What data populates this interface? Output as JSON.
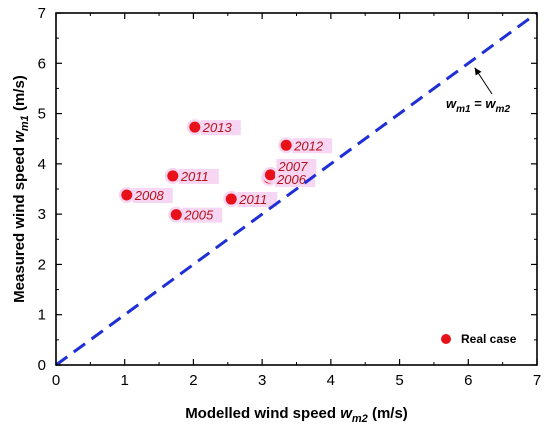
{
  "chart_data": {
    "type": "scatter",
    "x_axis": {
      "label_prefix": "Modelled wind speed ",
      "label_var": "w",
      "label_sub": "m2",
      "label_unit": " (m/s)",
      "range": [
        0,
        7
      ],
      "ticks": [
        "0",
        "1",
        "2",
        "3",
        "4",
        "5",
        "6",
        "7"
      ]
    },
    "y_axis": {
      "label_prefix": "Measured wind speed ",
      "label_var": "w",
      "label_sub": "m1",
      "label_unit": " (m/s)",
      "range": [
        0,
        7
      ],
      "ticks": [
        "0",
        "1",
        "2",
        "3",
        "4",
        "5",
        "6",
        "7"
      ]
    },
    "grid": false,
    "series": [
      {
        "name": "Real case",
        "color": "#e8111a",
        "points": [
          {
            "x": 1.03,
            "y": 3.38,
            "label": "2008"
          },
          {
            "x": 1.75,
            "y": 2.99,
            "label": "2005"
          },
          {
            "x": 1.7,
            "y": 3.76,
            "label": "2011"
          },
          {
            "x": 2.02,
            "y": 4.73,
            "label": "2013"
          },
          {
            "x": 2.55,
            "y": 3.3,
            "label": "2011"
          },
          {
            "x": 3.1,
            "y": 3.72,
            "label": "2006"
          },
          {
            "x": 3.12,
            "y": 3.78,
            "label": "2007"
          },
          {
            "x": 3.35,
            "y": 4.37,
            "label": "2012"
          }
        ]
      }
    ],
    "reference_line": {
      "points": [
        [
          0,
          0
        ],
        [
          7,
          7
        ]
      ],
      "color": "#1f2fd6",
      "style": "dashed",
      "label_lhs_var": "w",
      "label_lhs_sub": "m1",
      "label_eq": "= ",
      "label_rhs_var": "w",
      "label_rhs_sub": "m2"
    },
    "legend": {
      "position": "bottom-right",
      "entries": [
        "Real case"
      ]
    },
    "label_highlight_color": "#f7d6f3",
    "label_text_color": "#b5121b"
  }
}
